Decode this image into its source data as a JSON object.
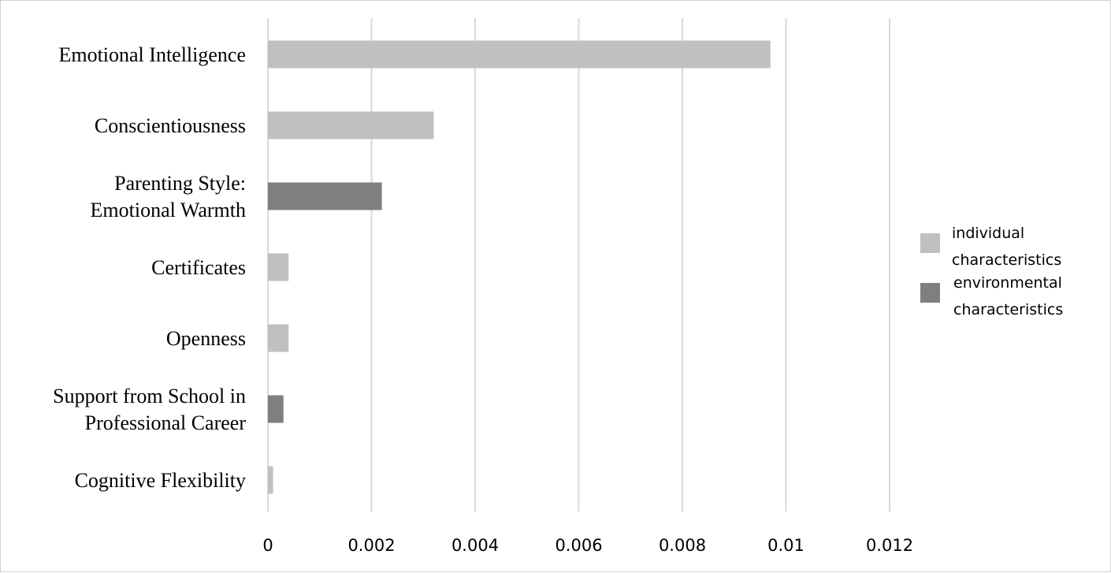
{
  "chart_data": {
    "type": "bar",
    "orientation": "horizontal",
    "title": "",
    "xlabel": "",
    "ylabel": "",
    "xlim": [
      0,
      0.012
    ],
    "xticks": [
      0,
      0.002,
      0.004,
      0.006,
      0.008,
      0.01,
      0.012
    ],
    "xtick_labels": [
      "0",
      "0.002",
      "0.004",
      "0.006",
      "0.008",
      "0.01",
      "0.012"
    ],
    "grid": "vertical",
    "legend_position": "right",
    "colors": {
      "individual": "#c0c0c0",
      "environmental": "#7f7f7f",
      "grid": "#d9d9d9"
    },
    "legend": [
      {
        "key": "individual",
        "lines": [
          "individual",
          "characteristics"
        ]
      },
      {
        "key": "environmental",
        "lines": [
          "environmental",
          "characteristics"
        ]
      }
    ],
    "bars": [
      {
        "lines": [
          "Emotional Intelligence"
        ],
        "value": 0.0097,
        "group": "individual"
      },
      {
        "lines": [
          "Conscientiousness"
        ],
        "value": 0.0032,
        "group": "individual"
      },
      {
        "lines": [
          "Parenting Style:",
          "Emotional Warmth"
        ],
        "value": 0.0022,
        "group": "environmental"
      },
      {
        "lines": [
          "Certificates"
        ],
        "value": 0.0004,
        "group": "individual"
      },
      {
        "lines": [
          "Openness"
        ],
        "value": 0.0004,
        "group": "individual"
      },
      {
        "lines": [
          "Support from School in",
          "Professional Career"
        ],
        "value": 0.0003,
        "group": "environmental"
      },
      {
        "lines": [
          "Cognitive Flexibility"
        ],
        "value": 0.0001,
        "group": "individual"
      }
    ]
  }
}
